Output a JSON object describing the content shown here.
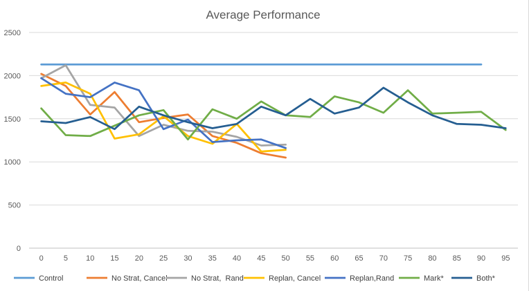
{
  "chart_data": {
    "type": "line",
    "title": "Average Performance",
    "xlabel": "",
    "ylabel": "",
    "x": [
      0,
      5,
      10,
      15,
      20,
      25,
      30,
      35,
      40,
      45,
      50,
      55,
      60,
      65,
      70,
      75,
      80,
      85,
      90,
      95
    ],
    "y_ticks": [
      0,
      500,
      1000,
      1500,
      2000,
      2500
    ],
    "ylim": [
      0,
      2500
    ],
    "grid": "horizontal",
    "legend_position": "bottom",
    "series": [
      {
        "name": "Control",
        "color": "#5b9bd5",
        "points": [
          [
            0,
            2130
          ],
          [
            5,
            2130
          ],
          [
            10,
            2130
          ],
          [
            15,
            2130
          ],
          [
            20,
            2130
          ],
          [
            25,
            2130
          ],
          [
            30,
            2130
          ],
          [
            35,
            2130
          ],
          [
            40,
            2130
          ],
          [
            45,
            2130
          ],
          [
            50,
            2130
          ],
          [
            55,
            2130
          ],
          [
            60,
            2130
          ],
          [
            65,
            2130
          ],
          [
            70,
            2130
          ],
          [
            75,
            2130
          ],
          [
            80,
            2130
          ],
          [
            85,
            2130
          ],
          [
            90,
            2130
          ]
        ]
      },
      {
        "name": "No Strat, Cancel",
        "color": "#ed7d31",
        "points": [
          [
            0,
            2020
          ],
          [
            5,
            1880
          ],
          [
            10,
            1550
          ],
          [
            15,
            1810
          ],
          [
            20,
            1460
          ],
          [
            25,
            1510
          ],
          [
            30,
            1550
          ],
          [
            35,
            1300
          ],
          [
            40,
            1220
          ],
          [
            45,
            1100
          ],
          [
            50,
            1050
          ]
        ]
      },
      {
        "name": "No Strat,  Rand",
        "color": "#a5a5a5",
        "points": [
          [
            0,
            1970
          ],
          [
            5,
            2120
          ],
          [
            10,
            1660
          ],
          [
            15,
            1630
          ],
          [
            20,
            1300
          ],
          [
            25,
            1430
          ],
          [
            30,
            1360
          ],
          [
            35,
            1350
          ],
          [
            40,
            1290
          ],
          [
            45,
            1190
          ],
          [
            50,
            1200
          ]
        ]
      },
      {
        "name": "Replan, Cancel",
        "color": "#ffc000",
        "points": [
          [
            0,
            1880
          ],
          [
            5,
            1920
          ],
          [
            10,
            1790
          ],
          [
            15,
            1270
          ],
          [
            20,
            1320
          ],
          [
            25,
            1530
          ],
          [
            30,
            1300
          ],
          [
            35,
            1210
          ],
          [
            40,
            1440
          ],
          [
            45,
            1120
          ],
          [
            50,
            1140
          ]
        ]
      },
      {
        "name": "Replan,Rand",
        "color": "#4472c4",
        "points": [
          [
            0,
            1970
          ],
          [
            5,
            1790
          ],
          [
            10,
            1750
          ],
          [
            15,
            1920
          ],
          [
            20,
            1830
          ],
          [
            25,
            1380
          ],
          [
            30,
            1490
          ],
          [
            35,
            1230
          ],
          [
            40,
            1250
          ],
          [
            45,
            1260
          ],
          [
            50,
            1160
          ]
        ]
      },
      {
        "name": "Mark*",
        "color": "#70ad47",
        "points": [
          [
            0,
            1620
          ],
          [
            5,
            1310
          ],
          [
            10,
            1300
          ],
          [
            15,
            1420
          ],
          [
            20,
            1540
          ],
          [
            25,
            1600
          ],
          [
            30,
            1260
          ],
          [
            35,
            1610
          ],
          [
            40,
            1500
          ],
          [
            45,
            1700
          ],
          [
            50,
            1540
          ],
          [
            55,
            1520
          ],
          [
            60,
            1760
          ],
          [
            65,
            1690
          ],
          [
            70,
            1570
          ],
          [
            75,
            1830
          ],
          [
            80,
            1560
          ],
          [
            85,
            1570
          ],
          [
            90,
            1580
          ],
          [
            95,
            1370
          ]
        ]
      },
      {
        "name": "Both*",
        "color": "#255e91",
        "points": [
          [
            0,
            1470
          ],
          [
            5,
            1450
          ],
          [
            10,
            1520
          ],
          [
            15,
            1380
          ],
          [
            20,
            1640
          ],
          [
            25,
            1540
          ],
          [
            30,
            1460
          ],
          [
            35,
            1390
          ],
          [
            40,
            1440
          ],
          [
            45,
            1640
          ],
          [
            50,
            1540
          ],
          [
            55,
            1730
          ],
          [
            60,
            1560
          ],
          [
            65,
            1630
          ],
          [
            70,
            1860
          ],
          [
            75,
            1690
          ],
          [
            80,
            1540
          ],
          [
            85,
            1440
          ],
          [
            90,
            1430
          ],
          [
            95,
            1390
          ]
        ]
      }
    ]
  }
}
